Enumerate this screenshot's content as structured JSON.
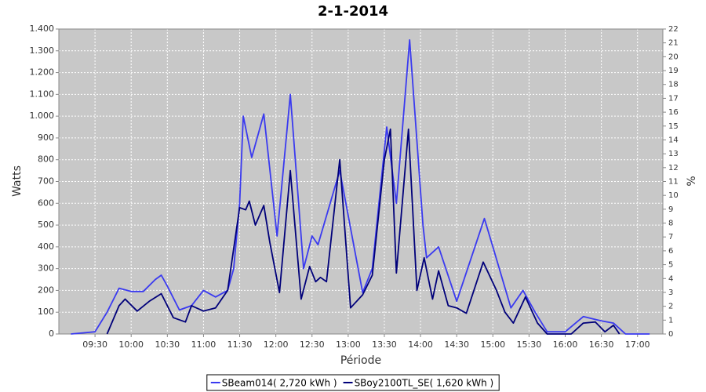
{
  "chart_data": {
    "type": "line",
    "title": "2-1-2014",
    "x_label": "Période",
    "y_label": "Watts",
    "y2_label": "%",
    "xlim": [
      "09:00",
      "17:21"
    ],
    "xticks": [
      "09:30",
      "10:00",
      "10:30",
      "11:00",
      "11:30",
      "12:00",
      "12:30",
      "13:00",
      "13:30",
      "14:00",
      "14:30",
      "15:00",
      "15:30",
      "16:00",
      "16:30",
      "17:00"
    ],
    "ylim": [
      0,
      1400
    ],
    "yticks": [
      0,
      100,
      200,
      300,
      400,
      500,
      600,
      700,
      800,
      900,
      {
        "value": 1000,
        "label": "1.000"
      },
      {
        "value": 1100,
        "label": "1.100"
      },
      {
        "value": 1200,
        "label": "1.200"
      },
      {
        "value": 1300,
        "label": "1.300"
      },
      {
        "value": 1400,
        "label": "1.400"
      }
    ],
    "y2lim": [
      0,
      22
    ],
    "y2ticks": [
      0,
      1,
      2,
      3,
      4,
      5,
      6,
      7,
      8,
      9,
      10,
      11,
      12,
      13,
      14,
      15,
      16,
      17,
      18,
      19,
      20,
      21,
      22
    ],
    "grid": true,
    "legend": "bottom",
    "series": [
      {
        "name": "SBeam014( 2,720 kWh )",
        "color": "#3a3af0",
        "x": [
          "09:10",
          "09:20",
          "09:30",
          "09:40",
          "09:50",
          "10:00",
          "10:10",
          "10:20",
          "10:25",
          "10:30",
          "10:40",
          "10:50",
          "11:00",
          "11:10",
          "11:20",
          "11:25",
          "11:30",
          "11:33",
          "11:40",
          "11:50",
          "12:01",
          "12:12",
          "12:23",
          "12:30",
          "12:35",
          "12:53",
          "13:12",
          "13:20",
          "13:32",
          "13:40",
          "13:51",
          "14:02",
          "14:05",
          "14:15",
          "14:30",
          "14:53",
          "15:00",
          "15:15",
          "15:25",
          "15:35",
          "15:45",
          "16:00",
          "16:15",
          "16:30",
          "16:40",
          "16:50",
          "17:10"
        ],
        "values": [
          0,
          5,
          10,
          100,
          210,
          195,
          195,
          250,
          270,
          220,
          110,
          130,
          200,
          170,
          200,
          300,
          600,
          1000,
          810,
          1010,
          450,
          1100,
          300,
          450,
          410,
          750,
          190,
          300,
          950,
          600,
          1350,
          500,
          350,
          400,
          150,
          530,
          400,
          120,
          200,
          100,
          10,
          10,
          80,
          60,
          50,
          0,
          0
        ]
      },
      {
        "name": "SBoy2100TL_SE( 1,620 kWh )",
        "color": "#00007a",
        "x": [
          "09:40",
          "09:50",
          "09:55",
          "10:05",
          "10:15",
          "10:25",
          "10:35",
          "10:45",
          "10:50",
          "11:00",
          "11:10",
          "11:20",
          "11:30",
          "11:35",
          "11:38",
          "11:43",
          "11:50",
          "11:55",
          "12:03",
          "12:12",
          "12:21",
          "12:28",
          "12:33",
          "12:37",
          "12:42",
          "12:53",
          "13:02",
          "13:12",
          "13:20",
          "13:30",
          "13:35",
          "13:40",
          "13:50",
          "13:57",
          "14:03",
          "14:10",
          "14:15",
          "14:23",
          "14:30",
          "14:38",
          "14:52",
          "15:03",
          "15:10",
          "15:17",
          "15:27",
          "15:37",
          "15:45",
          "16:05",
          "16:15",
          "16:25",
          "16:33",
          "16:40",
          "16:45"
        ],
        "values": [
          0,
          130,
          160,
          105,
          150,
          185,
          75,
          55,
          130,
          105,
          120,
          200,
          580,
          570,
          610,
          500,
          590,
          420,
          190,
          750,
          160,
          310,
          240,
          260,
          240,
          800,
          120,
          180,
          270,
          800,
          940,
          280,
          940,
          200,
          350,
          160,
          290,
          130,
          120,
          95,
          330,
          200,
          100,
          50,
          170,
          50,
          0,
          0,
          50,
          55,
          10,
          40,
          0
        ]
      }
    ]
  }
}
